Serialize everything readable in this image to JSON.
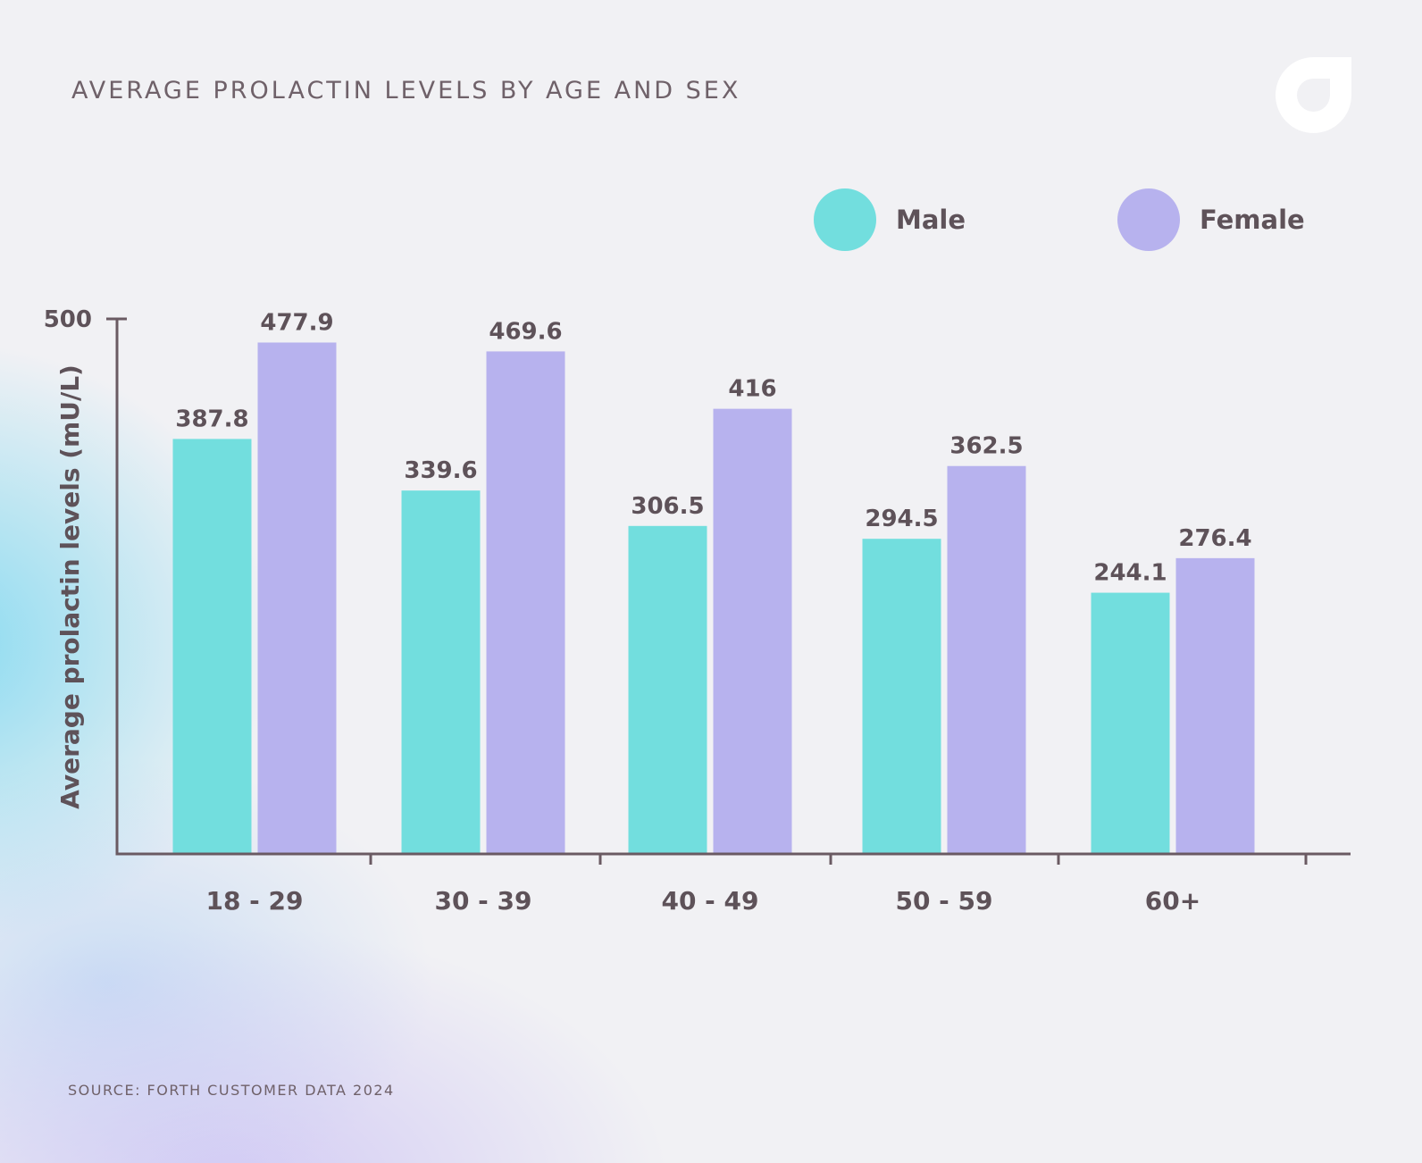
{
  "colors": {
    "male": "#72dede",
    "female": "#b7b2ee",
    "axis": "#6a5a62",
    "text": "#5e5259"
  },
  "header": {
    "title": "AVERAGE PROLACTIN LEVELS BY AGE AND SEX",
    "logo_icon": "brand-logo-icon"
  },
  "legend": {
    "male_label": "Male",
    "female_label": "Female"
  },
  "footer": {
    "source": "SOURCE: FORTH CUSTOMER DATA 2024"
  },
  "chart_data": {
    "type": "bar",
    "title": "AVERAGE PROLACTIN LEVELS BY AGE AND SEX",
    "categories": [
      "18 - 29",
      "30 - 39",
      "40 - 49",
      "50 - 59",
      "60+"
    ],
    "series": [
      {
        "name": "Male",
        "values": [
          387.8,
          339.6,
          306.5,
          294.5,
          244.1
        ],
        "labels": [
          "387.8",
          "339.6",
          "306.5",
          "294.5",
          "244.1"
        ]
      },
      {
        "name": "Female",
        "values": [
          477.9,
          469.6,
          416,
          362.5,
          276.4
        ],
        "labels": [
          "477.9",
          "469.6",
          "416",
          "362.5",
          "276.4"
        ]
      }
    ],
    "xlabel": "",
    "ylabel": "Average prolactin  levels (mU/L)",
    "ylim": [
      0,
      500
    ],
    "yticks": [
      500
    ],
    "ytick_labels": [
      "500"
    ],
    "grid": false,
    "legend_position": "top-right"
  }
}
